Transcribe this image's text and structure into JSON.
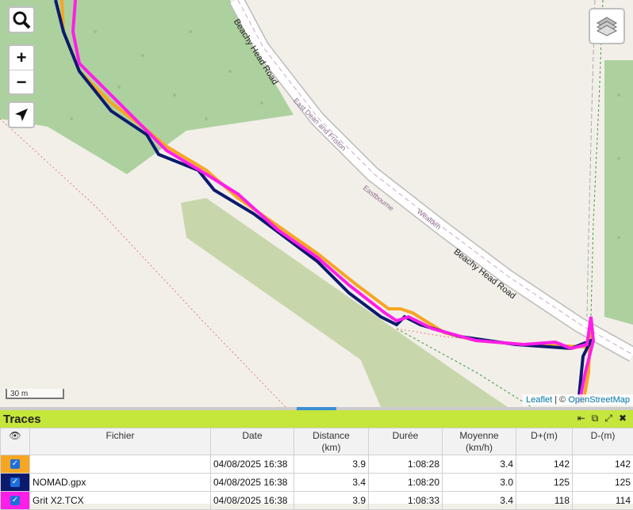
{
  "map": {
    "road_main": "Beachy Head Road",
    "road_route_1": "East Dean and Friston",
    "road_route_2": "Eastbourne",
    "road_route_3": "Wealden",
    "road_lower": "Beachy Head Road",
    "scale_label": "30 m",
    "attribution_leaflet": "Leaflet",
    "attribution_sep": " | © ",
    "attribution_osm": "OpenStreetMap",
    "controls": {
      "search_icon": "search-icon",
      "zoom_in": "+",
      "zoom_out": "−",
      "locate_icon": "navigation-arrow-icon",
      "layers_icon": "layers-icon"
    },
    "colors": {
      "track_orange": "#f5a623",
      "track_navy": "#0c1a6e",
      "track_magenta": "#ff1ee8",
      "forest": "#add19e",
      "scrub": "#c8d7ab"
    }
  },
  "panel": {
    "title": "Traces",
    "tools": [
      "⇤",
      "⧉",
      "⤢",
      "✖"
    ],
    "columns": {
      "visible": "👁",
      "fichier": "Fichier",
      "date": "Date",
      "distance": "Distance",
      "distance_unit": "(km)",
      "duree": "Durée",
      "moyenne": "Moyenne",
      "moyenne_unit": "(km/h)",
      "dplus": "D+(m)",
      "dminus": "D-(m)"
    },
    "rows": [
      {
        "color": "#f5a623",
        "checked": "✓",
        "file": "",
        "date": "04/08/2025 16:38",
        "distance": "3.9",
        "duration": "1:08:28",
        "avg": "3.4",
        "dplus": "142",
        "dminus": "142"
      },
      {
        "color": "#0c1a6e",
        "checked": "✓",
        "file": "NOMAD.gpx",
        "date": "04/08/2025 16:38",
        "distance": "3.4",
        "duration": "1:08:20",
        "avg": "3.0",
        "dplus": "125",
        "dminus": "125"
      },
      {
        "color": "#ff1ee8",
        "checked": "✓",
        "file": "Grit X2.TCX",
        "date": "04/08/2025 16:38",
        "distance": "3.9",
        "duration": "1:08:33",
        "avg": "3.4",
        "dplus": "118",
        "dminus": "114"
      }
    ]
  }
}
